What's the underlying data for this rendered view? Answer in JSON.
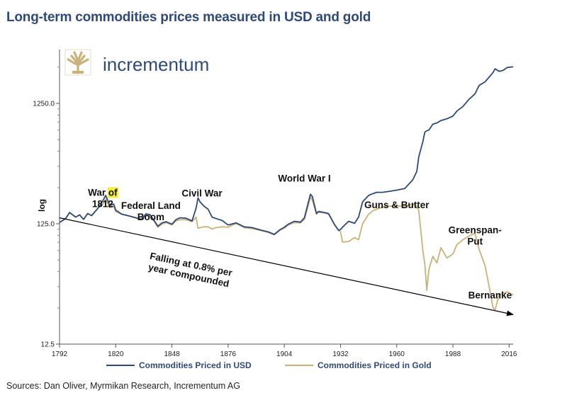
{
  "page": {
    "title": "Long-term commodities prices measured in USD and gold",
    "source": "Sources: Dan Oliver, Myrmikan Research, Incrementum AG",
    "brand": "incrementum",
    "brand_icon": "tree-logo-icon"
  },
  "chart_data": {
    "type": "line",
    "title": "Long-term commodities prices measured in USD and gold",
    "ylabel": "log",
    "xlabel": "",
    "yscale": "log",
    "ylim": [
      12.5,
      3500
    ],
    "xlim": [
      1792,
      2018
    ],
    "xticks": [
      1792,
      1820,
      1848,
      1876,
      1904,
      1932,
      1960,
      1988,
      2016
    ],
    "yticks": [
      {
        "value": 12.5,
        "label": "12.5"
      },
      {
        "value": 125,
        "label": "125.0"
      },
      {
        "value": 1250,
        "label": "1250.0"
      }
    ],
    "colors": {
      "usd": "#2f4a78",
      "gold": "#c8b27a",
      "trend": "#000000",
      "highlight": "#f2ec3a"
    },
    "legend": {
      "placement": "bottom"
    },
    "series": [
      {
        "name": "Commodities Priced in USD",
        "key": "usd",
        "x": [
          1792,
          1795,
          1797,
          1800,
          1802,
          1804,
          1806,
          1808,
          1810,
          1812,
          1814,
          1815,
          1817,
          1819,
          1820,
          1823,
          1826,
          1830,
          1833,
          1835,
          1837,
          1839,
          1841,
          1843,
          1845,
          1848,
          1850,
          1852,
          1855,
          1858,
          1860,
          1861,
          1862,
          1864,
          1866,
          1868,
          1870,
          1873,
          1876,
          1880,
          1884,
          1888,
          1892,
          1896,
          1899,
          1902,
          1904,
          1906,
          1909,
          1912,
          1914,
          1916,
          1917,
          1918,
          1920,
          1921,
          1924,
          1926,
          1929,
          1931,
          1932,
          1933,
          1936,
          1939,
          1941,
          1943,
          1946,
          1948,
          1950,
          1953,
          1956,
          1960,
          1964,
          1968,
          1970,
          1971,
          1973,
          1974,
          1975,
          1976,
          1978,
          1980,
          1982,
          1985,
          1988,
          1990,
          1993,
          1996,
          1999,
          2001,
          2004,
          2006,
          2008,
          2009,
          2011,
          2013,
          2015,
          2018
        ],
        "y": [
          128,
          138,
          155,
          142,
          148,
          136,
          152,
          146,
          160,
          175,
          200,
          215,
          178,
          182,
          162,
          150,
          146,
          140,
          136,
          151,
          149,
          134,
          119,
          127,
          130,
          124,
          135,
          140,
          139,
          132,
          168,
          205,
          190,
          175,
          165,
          142,
          138,
          133,
          122,
          127,
          118,
          116,
          111,
          107,
          102,
          112,
          117,
          124,
          131,
          129,
          140,
          190,
          220,
          210,
          152,
          158,
          155,
          152,
          123,
          110,
          112,
          117,
          131,
          126,
          142,
          190,
          215,
          222,
          228,
          228,
          232,
          238,
          245,
          290,
          340,
          450,
          600,
          720,
          740,
          750,
          840,
          860,
          900,
          930,
          980,
          1080,
          1180,
          1350,
          1500,
          1760,
          1890,
          2060,
          2260,
          2420,
          2310,
          2350,
          2480,
          2520
        ]
      },
      {
        "name": "Commodities Priced in Gold",
        "key": "gold",
        "x": [
          1792,
          1795,
          1797,
          1800,
          1802,
          1804,
          1806,
          1808,
          1810,
          1812,
          1814,
          1815,
          1817,
          1819,
          1820,
          1823,
          1826,
          1830,
          1833,
          1835,
          1837,
          1839,
          1841,
          1843,
          1845,
          1848,
          1850,
          1852,
          1855,
          1858,
          1860,
          1861,
          1862,
          1864,
          1866,
          1868,
          1870,
          1873,
          1876,
          1880,
          1884,
          1888,
          1892,
          1896,
          1899,
          1902,
          1904,
          1906,
          1909,
          1912,
          1914,
          1916,
          1917,
          1918,
          1920,
          1921,
          1924,
          1926,
          1929,
          1931,
          1932,
          1933,
          1936,
          1939,
          1941,
          1943,
          1946,
          1948,
          1950,
          1953,
          1956,
          1960,
          1964,
          1968,
          1970,
          1971,
          1973,
          1974,
          1975,
          1976,
          1978,
          1980,
          1982,
          1985,
          1988,
          1990,
          1993,
          1996,
          1999,
          2001,
          2004,
          2006,
          2008,
          2009,
          2011,
          2013,
          2015,
          2018
        ],
        "y": [
          128,
          138,
          155,
          142,
          148,
          136,
          152,
          146,
          160,
          175,
          185,
          200,
          170,
          174,
          158,
          150,
          146,
          140,
          136,
          146,
          145,
          132,
          117,
          124,
          128,
          122,
          132,
          135,
          135,
          130,
          142,
          115,
          116,
          118,
          118,
          113,
          116,
          118,
          117,
          126,
          116,
          114,
          110,
          106,
          101,
          111,
          115,
          122,
          128,
          127,
          136,
          180,
          210,
          195,
          150,
          156,
          154,
          150,
          123,
          111,
          107,
          88,
          89,
          96,
          92,
          125,
          150,
          160,
          165,
          172,
          175,
          176,
          175,
          182,
          175,
          160,
          75,
          58,
          35,
          52,
          67,
          59,
          79,
          65,
          70,
          84,
          92,
          99,
          104,
          77,
          56,
          38,
          25,
          24,
          32,
          33,
          34,
          32
        ]
      }
    ],
    "trendline": {
      "x": [
        1792,
        2018
      ],
      "y": [
        140,
        22
      ]
    },
    "annotations": [
      {
        "lines": [
          "War of",
          "1812"
        ],
        "highlight": "of",
        "x": 1813.5,
        "y": 205
      },
      {
        "lines": [
          "Federal Land",
          "Boom"
        ],
        "x": 1837.5,
        "y": 160
      },
      {
        "lines": [
          "Civil War"
        ],
        "x": 1863,
        "y": 225
      },
      {
        "lines": [
          "World War I"
        ],
        "x": 1914,
        "y": 300
      },
      {
        "lines": [
          "Guns & Butter"
        ],
        "x": 1960,
        "y": 180
      },
      {
        "lines": [
          "Greenspan-",
          "Put"
        ],
        "x": 1999,
        "y": 100
      },
      {
        "lines": [
          "Bernanke"
        ],
        "x": 2006.5,
        "y": 32
      },
      {
        "lines": [
          "Falling at 0.8% per",
          "year compounded"
        ],
        "x": 1857,
        "y": 52,
        "rotate": 12
      }
    ]
  }
}
